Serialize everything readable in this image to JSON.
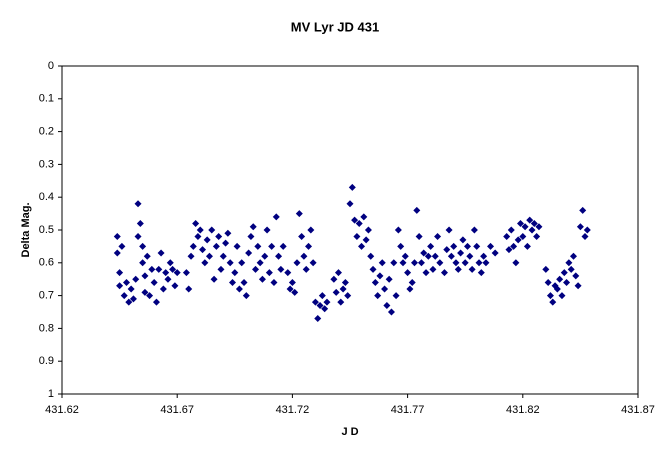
{
  "chart_data": {
    "type": "scatter",
    "title": "MV Lyr JD 431",
    "x_label": "J D",
    "y_label": "Delta Mag.",
    "xlim": [
      431.62,
      431.87
    ],
    "xticks": [
      431.62,
      431.67,
      431.72,
      431.77,
      431.82,
      431.87
    ],
    "ylim": [
      1,
      0
    ],
    "yticks": [
      0,
      0.1,
      0.2,
      0.3,
      0.4,
      0.5,
      0.6,
      0.7,
      0.8,
      0.9,
      1
    ],
    "grid": false,
    "series": [
      {
        "color": "#000080",
        "x": [
          431.644,
          431.644,
          431.645,
          431.645,
          431.646,
          431.647,
          431.648,
          431.649,
          431.65,
          431.651,
          431.652,
          431.653,
          431.653,
          431.654,
          431.655,
          431.655,
          431.656,
          431.656,
          431.657,
          431.658,
          431.659,
          431.66,
          431.661,
          431.662,
          431.663,
          431.664,
          431.665,
          431.666,
          431.667,
          431.668,
          431.669,
          431.67,
          431.674,
          431.675,
          431.676,
          431.677,
          431.678,
          431.679,
          431.68,
          431.681,
          431.682,
          431.683,
          431.684,
          431.685,
          431.686,
          431.687,
          431.688,
          431.689,
          431.69,
          431.691,
          431.692,
          431.693,
          431.694,
          431.695,
          431.696,
          431.697,
          431.698,
          431.699,
          431.7,
          431.701,
          431.702,
          431.703,
          431.704,
          431.705,
          431.706,
          431.707,
          431.708,
          431.709,
          431.71,
          431.711,
          431.712,
          431.713,
          431.714,
          431.715,
          431.716,
          431.718,
          431.719,
          431.72,
          431.721,
          431.722,
          431.723,
          431.724,
          431.725,
          431.726,
          431.727,
          431.728,
          431.729,
          431.73,
          431.731,
          431.732,
          431.733,
          431.734,
          431.735,
          431.738,
          431.739,
          431.74,
          431.741,
          431.742,
          431.743,
          431.744,
          431.745,
          431.746,
          431.747,
          431.748,
          431.749,
          431.75,
          431.751,
          431.752,
          431.753,
          431.754,
          431.755,
          431.756,
          431.757,
          431.758,
          431.759,
          431.76,
          431.761,
          431.762,
          431.763,
          431.764,
          431.765,
          431.766,
          431.767,
          431.768,
          431.769,
          431.77,
          431.771,
          431.772,
          431.773,
          431.774,
          431.775,
          431.776,
          431.777,
          431.778,
          431.779,
          431.78,
          431.781,
          431.782,
          431.783,
          431.784,
          431.786,
          431.787,
          431.788,
          431.789,
          431.79,
          431.791,
          431.792,
          431.793,
          431.794,
          431.795,
          431.796,
          431.797,
          431.798,
          431.799,
          431.8,
          431.801,
          431.802,
          431.803,
          431.804,
          431.806,
          431.808,
          431.813,
          431.814,
          431.815,
          431.816,
          431.817,
          431.818,
          431.819,
          431.82,
          431.821,
          431.822,
          431.823,
          431.824,
          431.825,
          431.826,
          431.827,
          431.83,
          431.831,
          431.832,
          431.833,
          431.834,
          431.835,
          431.836,
          431.837,
          431.838,
          431.839,
          431.84,
          431.841,
          431.842,
          431.843,
          431.844,
          431.845,
          431.846,
          431.847,
          431.848
        ],
        "values": [
          0.52,
          0.57,
          0.63,
          0.67,
          0.55,
          0.7,
          0.66,
          0.72,
          0.68,
          0.71,
          0.65,
          0.42,
          0.52,
          0.48,
          0.55,
          0.6,
          0.69,
          0.64,
          0.58,
          0.7,
          0.62,
          0.66,
          0.72,
          0.62,
          0.57,
          0.68,
          0.63,
          0.65,
          0.6,
          0.62,
          0.67,
          0.63,
          0.63,
          0.68,
          0.58,
          0.55,
          0.48,
          0.52,
          0.5,
          0.56,
          0.6,
          0.53,
          0.58,
          0.5,
          0.65,
          0.55,
          0.52,
          0.62,
          0.58,
          0.54,
          0.51,
          0.6,
          0.66,
          0.63,
          0.55,
          0.68,
          0.6,
          0.66,
          0.7,
          0.57,
          0.52,
          0.49,
          0.62,
          0.55,
          0.6,
          0.65,
          0.58,
          0.5,
          0.63,
          0.55,
          0.66,
          0.46,
          0.58,
          0.62,
          0.55,
          0.63,
          0.68,
          0.66,
          0.69,
          0.6,
          0.45,
          0.52,
          0.58,
          0.62,
          0.55,
          0.5,
          0.6,
          0.72,
          0.77,
          0.73,
          0.7,
          0.74,
          0.72,
          0.65,
          0.69,
          0.63,
          0.72,
          0.68,
          0.66,
          0.7,
          0.42,
          0.37,
          0.47,
          0.52,
          0.48,
          0.55,
          0.46,
          0.53,
          0.5,
          0.58,
          0.62,
          0.66,
          0.7,
          0.64,
          0.6,
          0.68,
          0.73,
          0.65,
          0.75,
          0.6,
          0.7,
          0.5,
          0.55,
          0.6,
          0.58,
          0.63,
          0.68,
          0.66,
          0.6,
          0.44,
          0.52,
          0.6,
          0.57,
          0.63,
          0.58,
          0.55,
          0.62,
          0.58,
          0.52,
          0.6,
          0.63,
          0.56,
          0.5,
          0.58,
          0.55,
          0.6,
          0.62,
          0.57,
          0.53,
          0.6,
          0.55,
          0.58,
          0.62,
          0.5,
          0.55,
          0.6,
          0.63,
          0.58,
          0.6,
          0.55,
          0.57,
          0.52,
          0.56,
          0.5,
          0.55,
          0.6,
          0.53,
          0.48,
          0.52,
          0.49,
          0.55,
          0.47,
          0.5,
          0.48,
          0.52,
          0.49,
          0.62,
          0.66,
          0.7,
          0.72,
          0.67,
          0.68,
          0.65,
          0.7,
          0.63,
          0.66,
          0.6,
          0.62,
          0.58,
          0.64,
          0.67,
          0.49,
          0.44,
          0.52,
          0.5
        ]
      }
    ]
  }
}
